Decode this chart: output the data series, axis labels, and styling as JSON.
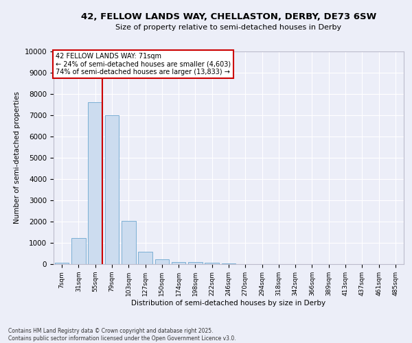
{
  "title_line1": "42, FELLOW LANDS WAY, CHELLASTON, DERBY, DE73 6SW",
  "title_line2": "Size of property relative to semi-detached houses in Derby",
  "xlabel": "Distribution of semi-detached houses by size in Derby",
  "ylabel": "Number of semi-detached properties",
  "categories": [
    "7sqm",
    "31sqm",
    "55sqm",
    "79sqm",
    "103sqm",
    "127sqm",
    "150sqm",
    "174sqm",
    "198sqm",
    "222sqm",
    "246sqm",
    "270sqm",
    "294sqm",
    "318sqm",
    "342sqm",
    "366sqm",
    "389sqm",
    "413sqm",
    "437sqm",
    "461sqm",
    "485sqm"
  ],
  "values": [
    55,
    1230,
    7600,
    7000,
    2020,
    580,
    230,
    110,
    90,
    55,
    20,
    0,
    0,
    0,
    0,
    0,
    0,
    0,
    0,
    0,
    0
  ],
  "bar_color": "#ccdcef",
  "bar_edge_color": "#7bafd4",
  "vline_x": 2.42,
  "vline_color": "#cc0000",
  "annotation_text": "42 FELLOW LANDS WAY: 71sqm\n← 24% of semi-detached houses are smaller (4,603)\n74% of semi-detached houses are larger (13,833) →",
  "annotation_box_facecolor": "#ffffff",
  "annotation_box_edgecolor": "#cc0000",
  "ylim": [
    0,
    10000
  ],
  "yticks": [
    0,
    1000,
    2000,
    3000,
    4000,
    5000,
    6000,
    7000,
    8000,
    9000,
    10000
  ],
  "background_color": "#eceef8",
  "grid_color": "#ffffff",
  "footer_line1": "Contains HM Land Registry data © Crown copyright and database right 2025.",
  "footer_line2": "Contains public sector information licensed under the Open Government Licence v3.0."
}
